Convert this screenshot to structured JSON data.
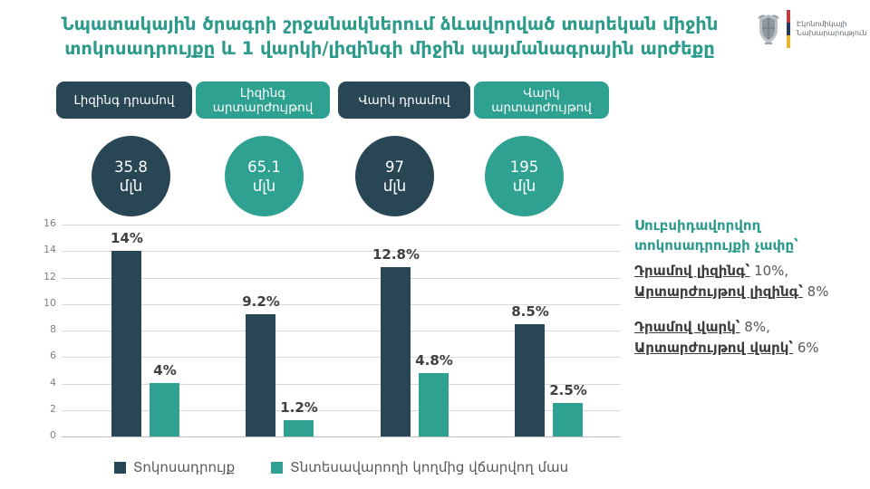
{
  "title": {
    "line1": "Նպատակային ծրագրի շրջանակներում ձևավորված տարեկան միջին",
    "line2": "տոկոսադրույքը և 1 վարկի/լիզինգի միջին պայմանագրային արժեքը"
  },
  "logo": {
    "ministry_line1": "Էկոնոմիկայի",
    "ministry_line2": "Նախարարություն"
  },
  "colors": {
    "dark": "#284654",
    "teal": "#2FA190",
    "title_teal": "#2D9B8C",
    "gridline": "#D9D9D9",
    "axis_line": "#BFBFBF",
    "tick_text": "#808080",
    "bar_label_text": "#3F3F3F",
    "legend_text": "#595959",
    "flag_red": "#C43C3C",
    "flag_blue": "#253B5E",
    "flag_orange": "#E7B52F"
  },
  "categories": [
    {
      "button": "Լիզինգ դրամով",
      "amount": "35.8",
      "unit": "մլն",
      "theme": "dark"
    },
    {
      "button": "Լիզինգ արտարժույթով",
      "amount": "65.1",
      "unit": "մլն",
      "theme": "teal"
    },
    {
      "button": "Վարկ դրամով",
      "amount": "97",
      "unit": "մլն",
      "theme": "dark"
    },
    {
      "button": "Վարկ արտարժույթով",
      "amount": "195",
      "unit": "մլն",
      "theme": "teal"
    }
  ],
  "chart_data": {
    "type": "bar",
    "categories": [
      "Լիզինգ դրամով",
      "Լիզինգ արտարժույթով",
      "Վարկ դրամով",
      "Վարկ արտարժույթով"
    ],
    "series": [
      {
        "name": "Տոկոսադրույք",
        "values": [
          14,
          9.2,
          12.8,
          8.5
        ],
        "labels": [
          "14%",
          "9.2%",
          "12.8%",
          "8.5%"
        ],
        "color": "#284654"
      },
      {
        "name": "Տնտեսավարողի կողմից վճարվող մաս",
        "values": [
          4,
          1.2,
          4.8,
          2.5
        ],
        "labels": [
          "4%",
          "1.2%",
          "4.8%",
          "2.5%"
        ],
        "color": "#2FA190"
      }
    ],
    "ylim": [
      0,
      16
    ],
    "ytick_step": 2,
    "yticks": [
      0,
      2,
      4,
      6,
      8,
      10,
      12,
      14,
      16
    ],
    "grid": true,
    "legend_position": "bottom"
  },
  "side_panel": {
    "heading": "Սուբսիդավորվող տոկոսադրույքի չափը՝",
    "groups": [
      {
        "lines": [
          {
            "term": "Դրամով լիզինգ՝",
            "value": " 10%,"
          },
          {
            "term": "Արտարժույթով լիզինգ՝",
            "value": " 8%"
          }
        ]
      },
      {
        "lines": [
          {
            "term": "Դրամով վարկ՝",
            "value": " 8%,"
          },
          {
            "term": "Արտարժույթով վարկ՝",
            "value": " 6%"
          }
        ]
      }
    ]
  }
}
